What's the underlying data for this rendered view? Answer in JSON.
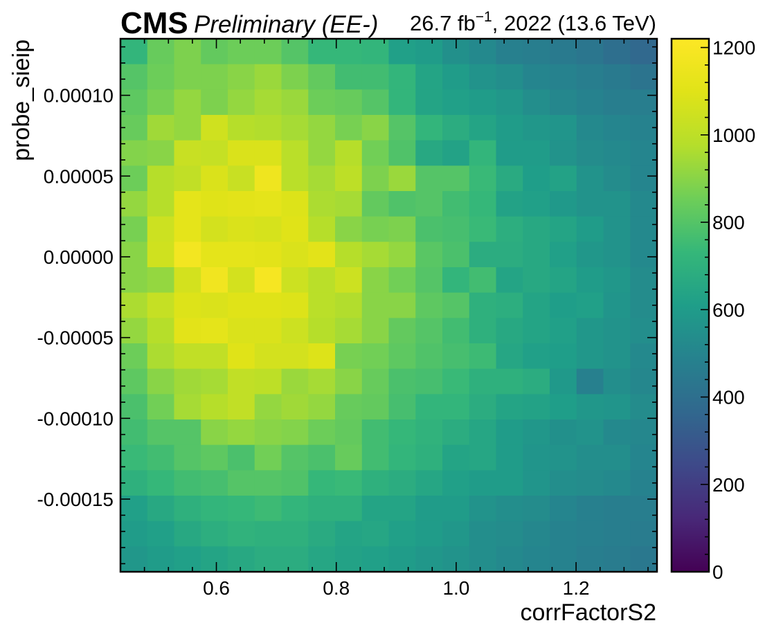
{
  "header": {
    "cms": "CMS",
    "preliminary": "Preliminary (EE-)",
    "lumi_value": "26.7 fb",
    "lumi_exponent": "−1",
    "lumi_rest": ", 2022 (13.6 TeV)"
  },
  "chart_data": {
    "type": "heatmap",
    "title": "",
    "xlabel": "corrFactorS2",
    "ylabel": "probe_sieip",
    "xlim": [
      0.44,
      1.335
    ],
    "ylim": [
      -0.000195,
      0.000135
    ],
    "x_ticks": [
      {
        "value": 0.6,
        "label": "0.6"
      },
      {
        "value": 0.8,
        "label": "0.8"
      },
      {
        "value": 1.0,
        "label": "1.0"
      },
      {
        "value": 1.2,
        "label": "1.2"
      }
    ],
    "y_ticks": [
      {
        "value": 0.0001,
        "label": "0.00010"
      },
      {
        "value": 5e-05,
        "label": "0.00005"
      },
      {
        "value": 0.0,
        "label": "0.00000"
      },
      {
        "value": -5e-05,
        "label": "-0.00005"
      },
      {
        "value": -0.0001,
        "label": "-0.00010"
      },
      {
        "value": -0.00015,
        "label": "-0.00015"
      }
    ],
    "nx": 20,
    "ny": 21,
    "colorbar": {
      "min": 0,
      "max": 1220,
      "colormap": "viridis",
      "ticks": [
        {
          "value": 0,
          "label": "0"
        },
        {
          "value": 200,
          "label": "200"
        },
        {
          "value": 400,
          "label": "400"
        },
        {
          "value": 600,
          "label": "600"
        },
        {
          "value": 800,
          "label": "800"
        },
        {
          "value": 1000,
          "label": "1000"
        },
        {
          "value": 1200,
          "label": "1200"
        }
      ]
    },
    "rows_top_to_bottom": [
      [
        720,
        840,
        880,
        830,
        850,
        850,
        800,
        730,
        730,
        720,
        620,
        600,
        550,
        520,
        480,
        470,
        450,
        430,
        400,
        370
      ],
      [
        800,
        850,
        880,
        880,
        900,
        930,
        880,
        830,
        760,
        760,
        720,
        640,
        600,
        560,
        540,
        500,
        490,
        470,
        450,
        420
      ],
      [
        820,
        870,
        920,
        880,
        920,
        950,
        930,
        850,
        840,
        800,
        720,
        640,
        620,
        600,
        580,
        540,
        510,
        490,
        470,
        470
      ],
      [
        840,
        940,
        920,
        1050,
        980,
        970,
        950,
        920,
        870,
        900,
        800,
        720,
        680,
        640,
        600,
        580,
        570,
        520,
        500,
        490
      ],
      [
        890,
        900,
        1030,
        1020,
        1080,
        1080,
        990,
        920,
        980,
        860,
        790,
        660,
        630,
        720,
        600,
        600,
        560,
        530,
        520,
        500
      ],
      [
        850,
        980,
        1010,
        1080,
        1030,
        1160,
        990,
        950,
        1000,
        880,
        930,
        800,
        800,
        740,
        670,
        610,
        630,
        560,
        530,
        500
      ],
      [
        920,
        980,
        1120,
        1100,
        1110,
        1120,
        1090,
        960,
        950,
        830,
        790,
        800,
        760,
        730,
        630,
        620,
        590,
        560,
        560,
        520
      ],
      [
        870,
        1040,
        1120,
        1060,
        1080,
        1070,
        1100,
        980,
        900,
        870,
        880,
        780,
        770,
        740,
        690,
        660,
        640,
        600,
        560,
        520
      ],
      [
        900,
        1050,
        1180,
        1120,
        1120,
        1110,
        1080,
        1110,
        980,
        950,
        920,
        810,
        780,
        680,
        680,
        660,
        620,
        580,
        560,
        520
      ],
      [
        900,
        920,
        1060,
        1170,
        1060,
        1190,
        1040,
        990,
        1040,
        900,
        860,
        800,
        720,
        760,
        640,
        660,
        640,
        600,
        580,
        530
      ],
      [
        960,
        1020,
        1090,
        1080,
        1100,
        1100,
        1090,
        990,
        970,
        900,
        900,
        820,
        800,
        700,
        690,
        640,
        610,
        620,
        570,
        530
      ],
      [
        920,
        980,
        1110,
        1120,
        1080,
        1080,
        1040,
        980,
        950,
        900,
        830,
        800,
        760,
        700,
        660,
        640,
        620,
        580,
        560,
        540
      ],
      [
        850,
        960,
        1010,
        1010,
        1100,
        1060,
        1060,
        1090,
        870,
        860,
        820,
        790,
        770,
        750,
        650,
        620,
        610,
        580,
        560,
        520
      ],
      [
        820,
        900,
        940,
        950,
        1010,
        1000,
        930,
        950,
        900,
        840,
        780,
        770,
        740,
        700,
        700,
        680,
        590,
        480,
        540,
        510
      ],
      [
        780,
        860,
        950,
        980,
        1010,
        920,
        940,
        920,
        840,
        830,
        770,
        720,
        720,
        680,
        640,
        630,
        610,
        580,
        570,
        530
      ],
      [
        760,
        800,
        800,
        900,
        920,
        900,
        890,
        850,
        830,
        760,
        730,
        710,
        680,
        650,
        600,
        580,
        550,
        560,
        520,
        510
      ],
      [
        740,
        760,
        800,
        820,
        780,
        860,
        800,
        780,
        840,
        760,
        720,
        700,
        640,
        650,
        600,
        570,
        560,
        540,
        540,
        500
      ],
      [
        700,
        730,
        760,
        770,
        800,
        800,
        790,
        730,
        740,
        700,
        680,
        650,
        620,
        600,
        600,
        570,
        540,
        530,
        520,
        490
      ],
      [
        620,
        660,
        700,
        720,
        730,
        750,
        720,
        700,
        700,
        640,
        640,
        600,
        600,
        560,
        540,
        530,
        500,
        480,
        470,
        470
      ],
      [
        600,
        620,
        660,
        690,
        710,
        700,
        700,
        670,
        640,
        650,
        620,
        600,
        580,
        540,
        530,
        510,
        490,
        480,
        470,
        460
      ],
      [
        580,
        600,
        620,
        640,
        660,
        680,
        680,
        650,
        630,
        620,
        600,
        580,
        560,
        540,
        520,
        500,
        490,
        470,
        460,
        440
      ]
    ]
  }
}
